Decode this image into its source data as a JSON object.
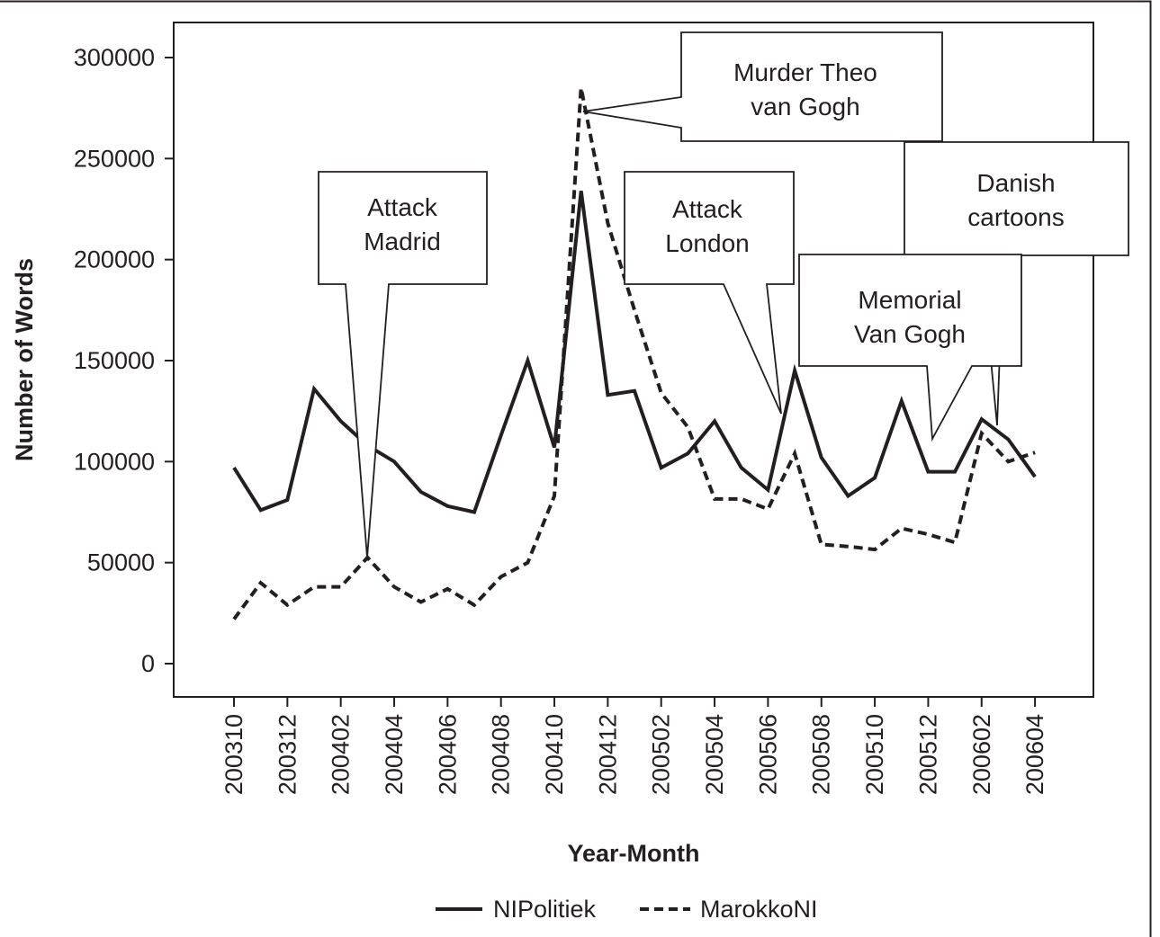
{
  "chart_data": {
    "type": "line",
    "title": "",
    "xlabel": "Year-Month",
    "ylabel": "Number of Words",
    "ylim": [
      0,
      300000
    ],
    "yticks": [
      0,
      50000,
      100000,
      150000,
      200000,
      250000,
      300000
    ],
    "x": [
      "200310",
      "200311",
      "200312",
      "200401",
      "200402",
      "200403",
      "200404",
      "200405",
      "200406",
      "200407",
      "200408",
      "200409",
      "200410",
      "200411",
      "200412",
      "200501",
      "200502",
      "200503",
      "200504",
      "200505",
      "200506",
      "200507",
      "200508",
      "200509",
      "200510",
      "200511",
      "200512",
      "200601",
      "200602",
      "200603",
      "200604"
    ],
    "xtick_labels": [
      "200310",
      "200312",
      "200402",
      "200404",
      "200406",
      "200408",
      "200410",
      "200412",
      "200502",
      "200504",
      "200506",
      "200508",
      "200510",
      "200512",
      "200602",
      "200604"
    ],
    "series": [
      {
        "name": "NIPolitiek",
        "style": "solid",
        "values": [
          97000,
          76000,
          81000,
          136000,
          120000,
          108000,
          100000,
          85000,
          78000,
          75000,
          113000,
          150000,
          107000,
          234000,
          133000,
          135000,
          97000,
          104000,
          120000,
          97000,
          86000,
          145000,
          102000,
          83000,
          92000,
          130000,
          95000,
          95000,
          121000,
          111000,
          92500
        ]
      },
      {
        "name": "MarokkoNI",
        "style": "dashed",
        "values": [
          22000,
          40000,
          29000,
          38000,
          38000,
          52500,
          38000,
          30500,
          37000,
          29000,
          43000,
          50000,
          83000,
          285000,
          218000,
          175000,
          134000,
          117000,
          81500,
          81500,
          76500,
          104000,
          59000,
          58000,
          56500,
          67000,
          64000,
          60000,
          114000,
          100000,
          104500
        ]
      }
    ],
    "annotations": [
      {
        "id": "madrid",
        "lines": [
          "Attack",
          "Madrid"
        ],
        "at": "200403"
      },
      {
        "id": "vangogh",
        "lines": [
          "Murder Theo",
          "van Gogh"
        ],
        "at": "200411"
      },
      {
        "id": "london",
        "lines": [
          "Attack",
          "London"
        ],
        "at": "200507"
      },
      {
        "id": "danish",
        "lines": [
          "Danish",
          "cartoons"
        ],
        "at": "200602"
      },
      {
        "id": "memorial",
        "lines": [
          "Memorial",
          "Van Gogh"
        ],
        "at": "200512"
      }
    ],
    "legend": {
      "placement": "bottom",
      "entries": [
        "NIPolitiek",
        "MarokkoNI"
      ]
    },
    "grid": false
  }
}
